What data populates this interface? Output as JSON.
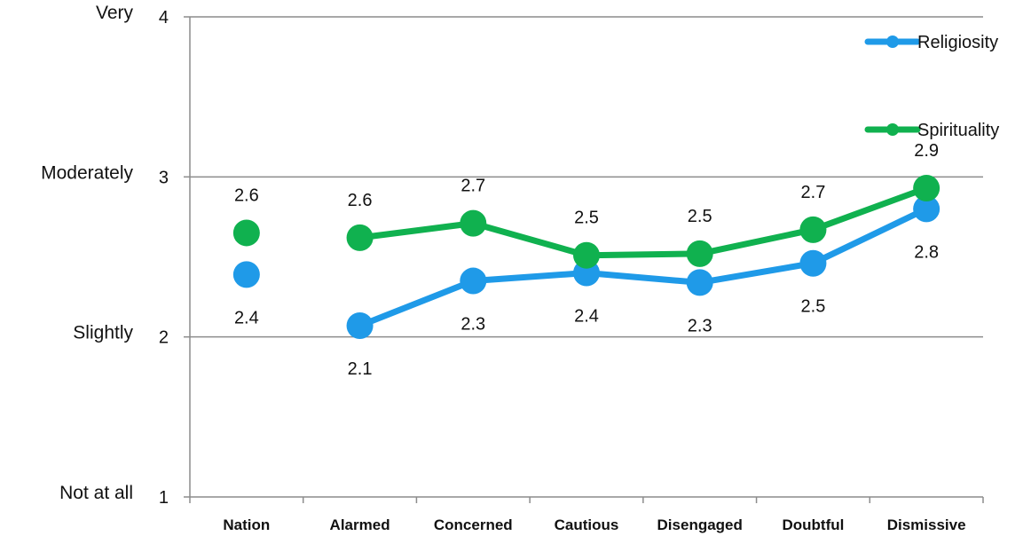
{
  "chart_data": {
    "type": "line",
    "categories": [
      "Nation",
      "Alarmed",
      "Concerned",
      "Cautious",
      "Disengaged",
      "Doubtful",
      "Dismissive"
    ],
    "series": [
      {
        "name": "Religiosity",
        "color": "#1f9ae8",
        "values": [
          2.39,
          2.07,
          2.35,
          2.4,
          2.34,
          2.46,
          2.8
        ],
        "labels": [
          "2.4",
          "2.1",
          "2.3",
          "2.4",
          "2.3",
          "2.5",
          "2.8"
        ],
        "label_position": "below"
      },
      {
        "name": "Spirituality",
        "color": "#10b14f",
        "values": [
          2.65,
          2.62,
          2.71,
          2.51,
          2.52,
          2.67,
          2.93
        ],
        "labels": [
          "2.6",
          "2.6",
          "2.7",
          "2.5",
          "2.5",
          "2.7",
          "2.9"
        ],
        "label_position": "above"
      }
    ],
    "line_breaks_after_first_category": true,
    "y_ticks": [
      {
        "value": 1,
        "number": "1",
        "word": "Not at all"
      },
      {
        "value": 2,
        "number": "2",
        "word": "Slightly"
      },
      {
        "value": 3,
        "number": "3",
        "word": "Moderately"
      },
      {
        "value": 4,
        "number": "4",
        "word": "Very"
      }
    ],
    "ylim": [
      1,
      4
    ],
    "grid": true,
    "legend_position": "top-right",
    "title": "",
    "xlabel": "",
    "ylabel": ""
  }
}
